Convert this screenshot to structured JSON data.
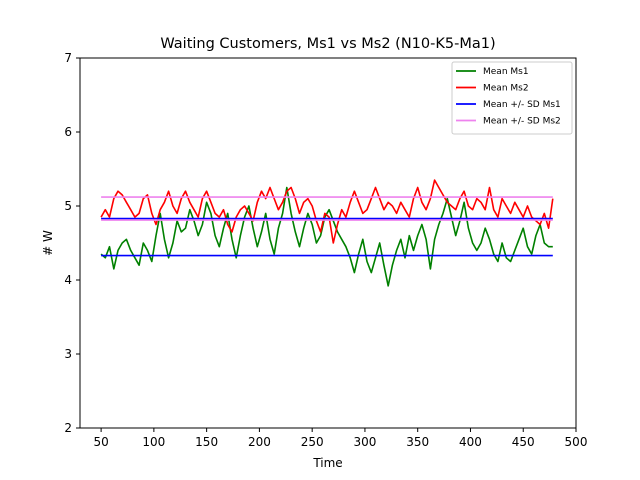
{
  "chart_data": {
    "type": "line",
    "title": "Waiting Customers, Ms1 vs Ms2 (N10-K5-Ma1)",
    "xlabel": "Time",
    "ylabel": "# W",
    "xlim": [
      30,
      500
    ],
    "ylim": [
      2,
      7
    ],
    "xticks": [
      50,
      100,
      150,
      200,
      250,
      300,
      350,
      400,
      450,
      500
    ],
    "yticks": [
      2,
      3,
      4,
      5,
      6,
      7
    ],
    "grid": false,
    "legend_position": "top-right",
    "series": [
      {
        "name": "Mean Ms1",
        "color": "#008000",
        "x": [
          50,
          54,
          58,
          62,
          66,
          70,
          74,
          78,
          82,
          86,
          90,
          94,
          98,
          102,
          106,
          110,
          114,
          118,
          122,
          126,
          130,
          134,
          138,
          142,
          146,
          150,
          154,
          158,
          162,
          166,
          170,
          174,
          178,
          182,
          186,
          190,
          194,
          198,
          202,
          206,
          210,
          214,
          218,
          222,
          226,
          230,
          234,
          238,
          242,
          246,
          250,
          254,
          258,
          262,
          266,
          270,
          274,
          278,
          282,
          286,
          290,
          294,
          298,
          302,
          306,
          310,
          314,
          318,
          322,
          326,
          330,
          334,
          338,
          342,
          346,
          350,
          354,
          358,
          362,
          366,
          370,
          374,
          378,
          382,
          386,
          390,
          394,
          398,
          402,
          406,
          410,
          414,
          418,
          422,
          426,
          430,
          434,
          438,
          442,
          446,
          450,
          454,
          458,
          462,
          466,
          470,
          474,
          478
        ],
        "values": [
          4.35,
          4.3,
          4.45,
          4.15,
          4.4,
          4.5,
          4.55,
          4.4,
          4.3,
          4.2,
          4.5,
          4.4,
          4.25,
          4.6,
          4.9,
          4.55,
          4.3,
          4.5,
          4.8,
          4.65,
          4.7,
          4.95,
          4.8,
          4.6,
          4.75,
          5.05,
          4.9,
          4.6,
          4.45,
          4.7,
          4.9,
          4.55,
          4.3,
          4.6,
          4.85,
          5.0,
          4.7,
          4.45,
          4.65,
          4.9,
          4.55,
          4.35,
          4.7,
          4.9,
          5.25,
          4.9,
          4.65,
          4.45,
          4.7,
          4.9,
          4.75,
          4.5,
          4.6,
          4.85,
          4.95,
          4.8,
          4.65,
          4.55,
          4.45,
          4.3,
          4.1,
          4.35,
          4.55,
          4.25,
          4.1,
          4.3,
          4.5,
          4.2,
          3.92,
          4.2,
          4.4,
          4.55,
          4.3,
          4.6,
          4.4,
          4.6,
          4.75,
          4.55,
          4.15,
          4.55,
          4.75,
          4.9,
          5.1,
          4.85,
          4.6,
          4.8,
          5.05,
          4.7,
          4.5,
          4.4,
          4.5,
          4.7,
          4.55,
          4.35,
          4.25,
          4.5,
          4.3,
          4.25,
          4.4,
          4.55,
          4.7,
          4.45,
          4.35,
          4.6,
          4.75,
          4.5,
          4.45,
          4.45
        ]
      },
      {
        "name": "Mean Ms2",
        "color": "#ff0000",
        "x": [
          50,
          54,
          58,
          62,
          66,
          70,
          74,
          78,
          82,
          86,
          90,
          94,
          98,
          102,
          106,
          110,
          114,
          118,
          122,
          126,
          130,
          134,
          138,
          142,
          146,
          150,
          154,
          158,
          162,
          166,
          170,
          174,
          178,
          182,
          186,
          190,
          194,
          198,
          202,
          206,
          210,
          214,
          218,
          222,
          226,
          230,
          234,
          238,
          242,
          246,
          250,
          254,
          258,
          262,
          266,
          270,
          274,
          278,
          282,
          286,
          290,
          294,
          298,
          302,
          306,
          310,
          314,
          318,
          322,
          326,
          330,
          334,
          338,
          342,
          346,
          350,
          354,
          358,
          362,
          366,
          370,
          374,
          378,
          382,
          386,
          390,
          394,
          398,
          402,
          406,
          410,
          414,
          418,
          422,
          426,
          430,
          434,
          438,
          442,
          446,
          450,
          454,
          458,
          462,
          466,
          470,
          474,
          478
        ],
        "values": [
          4.85,
          4.95,
          4.85,
          5.1,
          5.2,
          5.15,
          5.05,
          4.95,
          4.85,
          4.9,
          5.1,
          5.15,
          4.9,
          4.75,
          4.95,
          5.05,
          5.2,
          5.0,
          4.9,
          5.1,
          5.2,
          5.05,
          4.95,
          4.85,
          5.1,
          5.2,
          5.05,
          4.9,
          4.85,
          4.95,
          4.75,
          4.65,
          4.85,
          4.95,
          5.0,
          4.9,
          4.8,
          5.05,
          5.2,
          5.1,
          5.25,
          5.1,
          4.95,
          5.05,
          5.2,
          5.25,
          5.1,
          4.9,
          5.05,
          5.1,
          5.0,
          4.8,
          4.65,
          4.9,
          4.85,
          4.5,
          4.75,
          4.95,
          4.85,
          5.05,
          5.2,
          5.05,
          4.9,
          4.95,
          5.1,
          5.25,
          5.1,
          4.95,
          5.05,
          5.0,
          4.9,
          5.05,
          4.95,
          4.85,
          5.1,
          5.25,
          5.05,
          4.95,
          5.1,
          5.35,
          5.25,
          5.15,
          5.05,
          5.0,
          4.95,
          5.1,
          5.2,
          5.0,
          4.95,
          5.1,
          5.05,
          4.95,
          5.25,
          4.95,
          4.85,
          5.1,
          5.0,
          4.9,
          5.05,
          4.95,
          4.85,
          5.0,
          4.85,
          4.8,
          4.75,
          4.9,
          4.7,
          5.1
        ]
      },
      {
        "name": "Mean +/- SD Ms1",
        "color": "#0000ff",
        "x": [
          50,
          478
        ],
        "values": [
          4.33,
          4.33
        ]
      },
      {
        "name": "",
        "color": "#0000ff",
        "x": [
          50,
          478
        ],
        "values": [
          4.83,
          4.83
        ]
      },
      {
        "name": "Mean +/- SD Ms2",
        "color": "#ee82ee",
        "x": [
          50,
          478
        ],
        "values": [
          5.12,
          5.12
        ]
      },
      {
        "name": "",
        "color": "#ee82ee",
        "x": [
          50,
          478
        ],
        "values": [
          4.81,
          4.81
        ]
      }
    ]
  }
}
